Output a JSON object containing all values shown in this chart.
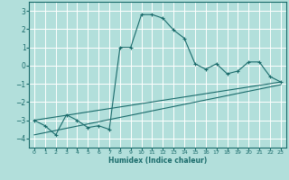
{
  "xlabel": "Humidex (Indice chaleur)",
  "background_color": "#b2dfdb",
  "grid_color": "#ffffff",
  "line_color": "#1a6b6b",
  "xlim": [
    -0.5,
    23.5
  ],
  "ylim": [
    -4.5,
    3.5
  ],
  "xticks": [
    0,
    1,
    2,
    3,
    4,
    5,
    6,
    7,
    8,
    9,
    10,
    11,
    12,
    13,
    14,
    15,
    16,
    17,
    18,
    19,
    20,
    21,
    22,
    23
  ],
  "yticks": [
    -4,
    -3,
    -2,
    -1,
    0,
    1,
    2,
    3
  ],
  "series": [
    [
      0,
      -3.0
    ],
    [
      1,
      -3.3
    ],
    [
      2,
      -3.8
    ],
    [
      3,
      -2.7
    ],
    [
      4,
      -3.0
    ],
    [
      5,
      -3.4
    ],
    [
      6,
      -3.3
    ],
    [
      7,
      -3.5
    ],
    [
      8,
      1.0
    ],
    [
      9,
      1.0
    ],
    [
      10,
      2.8
    ],
    [
      11,
      2.8
    ],
    [
      12,
      2.6
    ],
    [
      13,
      1.95
    ],
    [
      14,
      1.5
    ],
    [
      15,
      0.1
    ],
    [
      16,
      -0.2
    ],
    [
      17,
      0.1
    ],
    [
      18,
      -0.45
    ],
    [
      19,
      -0.3
    ],
    [
      20,
      0.2
    ],
    [
      21,
      0.2
    ],
    [
      22,
      -0.6
    ],
    [
      23,
      -0.9
    ]
  ],
  "regression_line": [
    [
      0,
      -3.0
    ],
    [
      23,
      -0.9
    ]
  ],
  "regression_line2": [
    [
      0,
      -3.8
    ],
    [
      23,
      -1.05
    ]
  ]
}
